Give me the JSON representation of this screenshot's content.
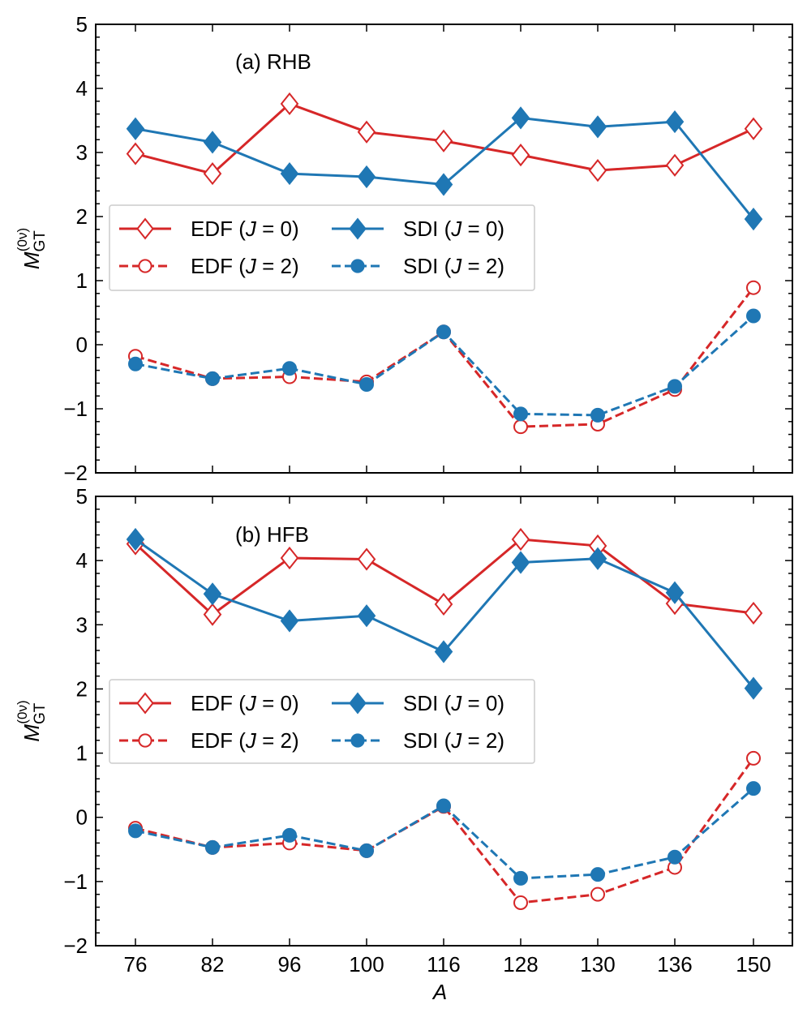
{
  "chart_data": [
    {
      "type": "line",
      "panel_label": "(a) RHB",
      "categories": [
        "76",
        "82",
        "96",
        "100",
        "116",
        "128",
        "130",
        "136",
        "150"
      ],
      "ylabel": {
        "base": "M",
        "sup": "(0ν)",
        "sub": "GT"
      },
      "xlabel": "",
      "ylim": [
        -2,
        5
      ],
      "yticks": [
        "5",
        "4",
        "3",
        "2",
        "1",
        "0",
        "−1",
        "−2"
      ],
      "series": [
        {
          "name": "EDF (J = 0)",
          "label_pre": "EDF (",
          "label_var": "J",
          "label_post": " = 0)",
          "color": "#d62728",
          "marker": "diamond-open",
          "dash": false,
          "values": [
            2.98,
            2.67,
            3.76,
            3.32,
            3.18,
            2.96,
            2.72,
            2.8,
            3.37
          ]
        },
        {
          "name": "EDF (J = 2)",
          "label_pre": "EDF (",
          "label_var": "J",
          "label_post": " = 2)",
          "color": "#d62728",
          "marker": "circle-open",
          "dash": true,
          "values": [
            -0.18,
            -0.53,
            -0.5,
            -0.58,
            0.2,
            -1.28,
            -1.24,
            -0.7,
            0.89
          ]
        },
        {
          "name": "SDI (J = 0)",
          "label_pre": "SDI (",
          "label_var": "J",
          "label_post": " = 0)",
          "color": "#1f77b4",
          "marker": "diamond",
          "dash": false,
          "values": [
            3.37,
            3.16,
            2.67,
            2.62,
            2.5,
            3.54,
            3.4,
            3.48,
            1.96
          ]
        },
        {
          "name": "SDI (J = 2)",
          "label_pre": "SDI (",
          "label_var": "J",
          "label_post": " = 2)",
          "color": "#1f77b4",
          "marker": "circle",
          "dash": true,
          "values": [
            -0.3,
            -0.53,
            -0.37,
            -0.62,
            0.2,
            -1.08,
            -1.1,
            -0.65,
            0.45
          ]
        }
      ]
    },
    {
      "type": "line",
      "panel_label": "(b) HFB",
      "categories": [
        "76",
        "82",
        "96",
        "100",
        "116",
        "128",
        "130",
        "136",
        "150"
      ],
      "ylabel": {
        "base": "M",
        "sup": "(0ν)",
        "sub": "GT"
      },
      "xlabel": "A",
      "ylim": [
        -2,
        5
      ],
      "yticks": [
        "5",
        "4",
        "3",
        "2",
        "1",
        "0",
        "−1",
        "−2"
      ],
      "series": [
        {
          "name": "EDF (J = 0)",
          "label_pre": "EDF (",
          "label_var": "J",
          "label_post": " = 0)",
          "color": "#d62728",
          "marker": "diamond-open",
          "dash": false,
          "values": [
            4.26,
            3.16,
            4.04,
            4.02,
            3.32,
            4.33,
            4.23,
            3.33,
            3.18
          ]
        },
        {
          "name": "EDF (J = 2)",
          "label_pre": "EDF (",
          "label_var": "J",
          "label_post": " = 2)",
          "color": "#d62728",
          "marker": "circle-open",
          "dash": true,
          "values": [
            -0.17,
            -0.47,
            -0.4,
            -0.52,
            0.17,
            -1.33,
            -1.2,
            -0.78,
            0.92
          ]
        },
        {
          "name": "SDI (J = 0)",
          "label_pre": "SDI (",
          "label_var": "J",
          "label_post": " = 0)",
          "color": "#1f77b4",
          "marker": "diamond",
          "dash": false,
          "values": [
            4.33,
            3.48,
            3.06,
            3.14,
            2.58,
            3.97,
            4.03,
            3.5,
            2.01
          ]
        },
        {
          "name": "SDI (J = 2)",
          "label_pre": "SDI (",
          "label_var": "J",
          "label_post": " = 2)",
          "color": "#1f77b4",
          "marker": "circle",
          "dash": true,
          "values": [
            -0.21,
            -0.47,
            -0.28,
            -0.52,
            0.18,
            -0.95,
            -0.89,
            -0.62,
            0.45
          ]
        }
      ]
    }
  ]
}
